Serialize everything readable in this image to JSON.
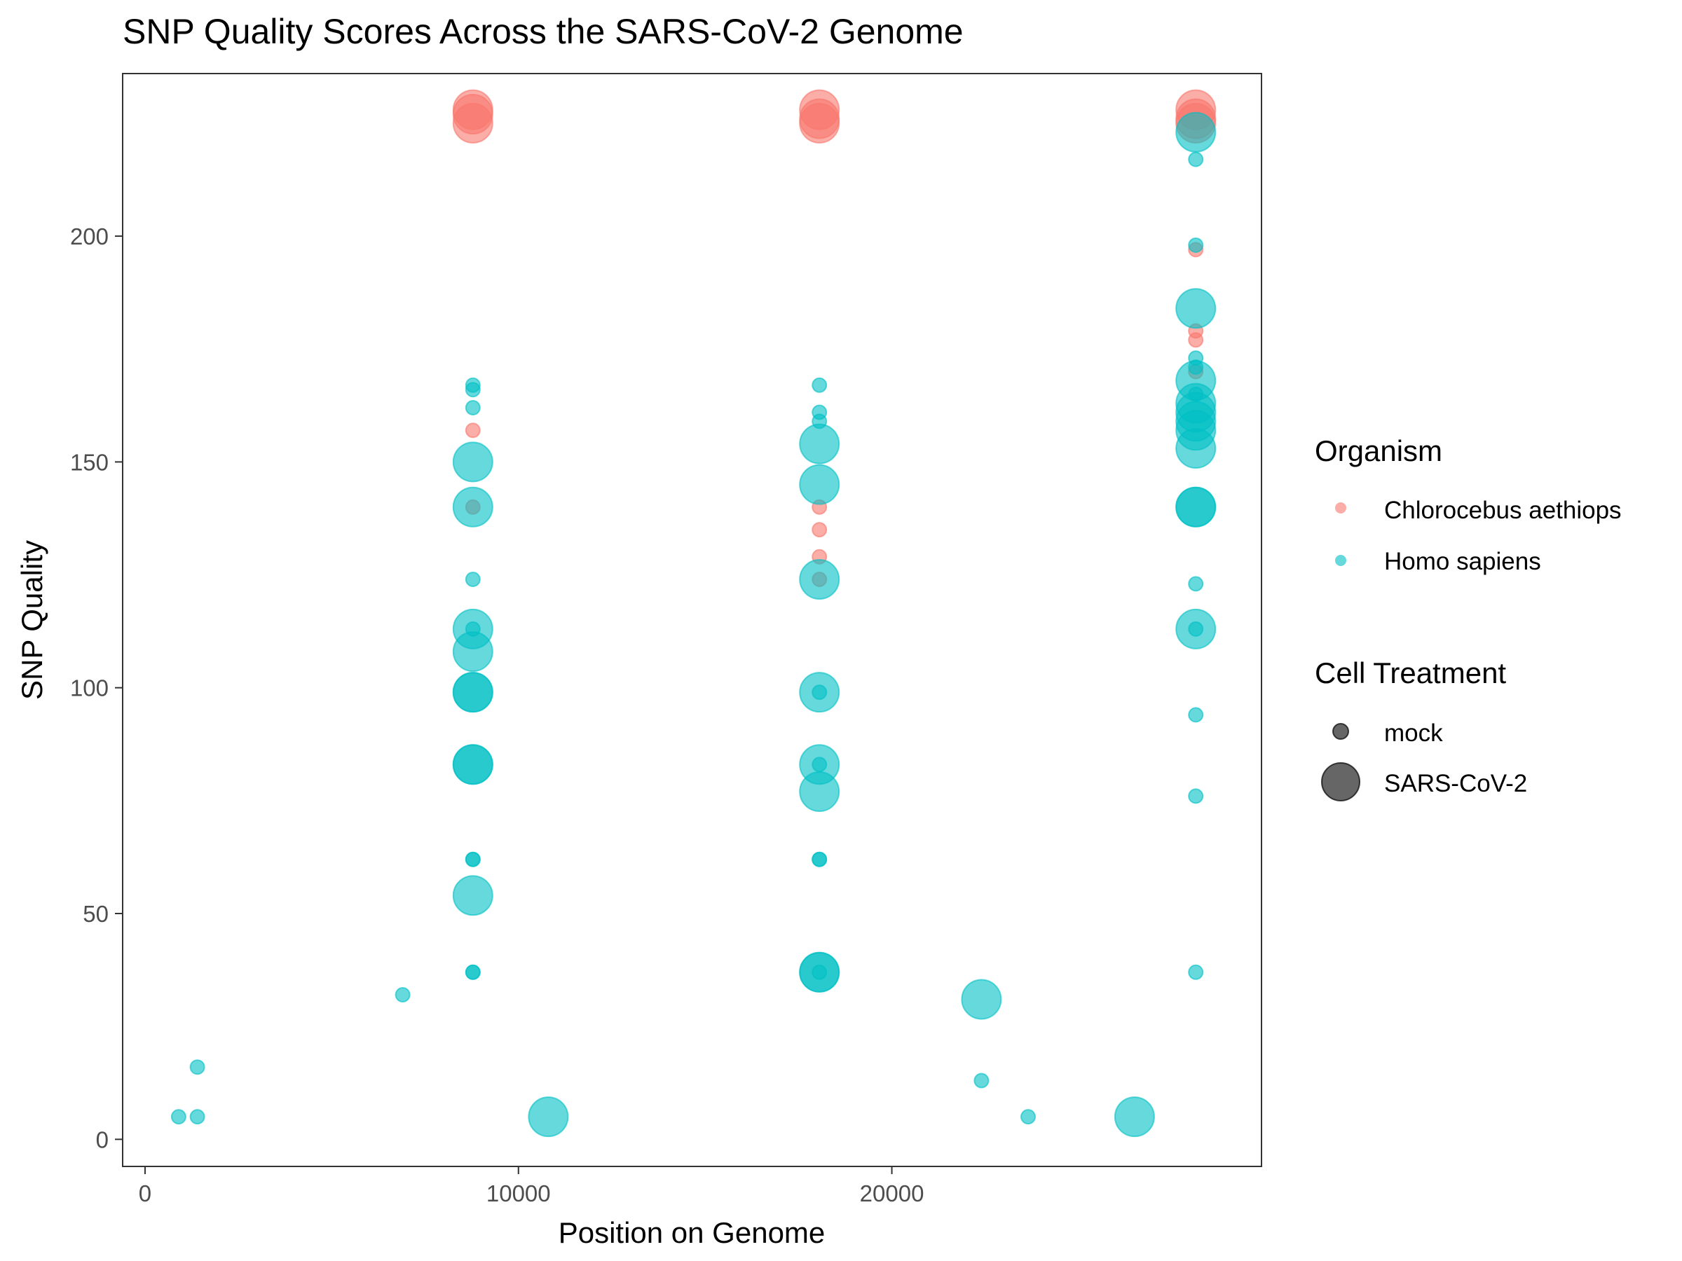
{
  "chart_data": {
    "type": "scatter",
    "title": "SNP Quality Scores Across the SARS-CoV-2 Genome",
    "xlabel": "Position on Genome",
    "ylabel": "SNP Quality",
    "xlim": [
      -600,
      29900
    ],
    "ylim": [
      -6,
      236
    ],
    "x_ticks": [
      0,
      10000,
      20000
    ],
    "y_ticks": [
      0,
      50,
      100,
      150,
      200
    ],
    "grid": false,
    "legend_placement": "right",
    "color_legend": {
      "title": "Organism",
      "entries": [
        {
          "label": "Chlorocebus aethiops",
          "color": "#F8766D"
        },
        {
          "label": "Homo sapiens",
          "color": "#00BFC4"
        }
      ]
    },
    "size_legend": {
      "title": "Cell Treatment",
      "entries": [
        {
          "label": "mock",
          "size": "small"
        },
        {
          "label": "SARS-CoV-2",
          "size": "large"
        }
      ]
    },
    "series": [
      {
        "name": "Chlorocebus aethiops",
        "color": "#F8766D",
        "points": [
          {
            "x": 8780,
            "y": 228,
            "treatment": "SARS-CoV-2"
          },
          {
            "x": 8780,
            "y": 227,
            "treatment": "SARS-CoV-2"
          },
          {
            "x": 8780,
            "y": 225,
            "treatment": "SARS-CoV-2"
          },
          {
            "x": 8780,
            "y": 157,
            "treatment": "mock"
          },
          {
            "x": 8780,
            "y": 140,
            "treatment": "mock"
          },
          {
            "x": 18060,
            "y": 228,
            "treatment": "SARS-CoV-2"
          },
          {
            "x": 18060,
            "y": 226,
            "treatment": "SARS-CoV-2"
          },
          {
            "x": 18060,
            "y": 225,
            "treatment": "SARS-CoV-2"
          },
          {
            "x": 18060,
            "y": 140,
            "treatment": "mock"
          },
          {
            "x": 18060,
            "y": 135,
            "treatment": "mock"
          },
          {
            "x": 18060,
            "y": 129,
            "treatment": "mock"
          },
          {
            "x": 18060,
            "y": 124,
            "treatment": "mock"
          },
          {
            "x": 28140,
            "y": 228,
            "treatment": "SARS-CoV-2"
          },
          {
            "x": 28140,
            "y": 226,
            "treatment": "SARS-CoV-2"
          },
          {
            "x": 28140,
            "y": 225,
            "treatment": "SARS-CoV-2"
          },
          {
            "x": 28140,
            "y": 197,
            "treatment": "mock"
          },
          {
            "x": 28140,
            "y": 179,
            "treatment": "mock"
          },
          {
            "x": 28140,
            "y": 177,
            "treatment": "mock"
          },
          {
            "x": 28140,
            "y": 170,
            "treatment": "mock"
          }
        ]
      },
      {
        "name": "Homo sapiens",
        "color": "#00BFC4",
        "points": [
          {
            "x": 8780,
            "y": 167,
            "treatment": "mock"
          },
          {
            "x": 8780,
            "y": 166,
            "treatment": "mock"
          },
          {
            "x": 8780,
            "y": 162,
            "treatment": "mock"
          },
          {
            "x": 8780,
            "y": 150,
            "treatment": "SARS-CoV-2"
          },
          {
            "x": 8780,
            "y": 140,
            "treatment": "SARS-CoV-2"
          },
          {
            "x": 8780,
            "y": 124,
            "treatment": "mock"
          },
          {
            "x": 8780,
            "y": 113,
            "treatment": "SARS-CoV-2"
          },
          {
            "x": 8780,
            "y": 113,
            "treatment": "mock"
          },
          {
            "x": 8780,
            "y": 108,
            "treatment": "SARS-CoV-2"
          },
          {
            "x": 8780,
            "y": 99,
            "treatment": "SARS-CoV-2"
          },
          {
            "x": 8780,
            "y": 99,
            "treatment": "SARS-CoV-2"
          },
          {
            "x": 8780,
            "y": 83,
            "treatment": "SARS-CoV-2"
          },
          {
            "x": 8780,
            "y": 83,
            "treatment": "SARS-CoV-2"
          },
          {
            "x": 8780,
            "y": 62,
            "treatment": "mock"
          },
          {
            "x": 8780,
            "y": 62,
            "treatment": "mock"
          },
          {
            "x": 8780,
            "y": 54,
            "treatment": "SARS-CoV-2"
          },
          {
            "x": 8780,
            "y": 37,
            "treatment": "mock"
          },
          {
            "x": 8780,
            "y": 37,
            "treatment": "mock"
          },
          {
            "x": 18060,
            "y": 167,
            "treatment": "mock"
          },
          {
            "x": 18060,
            "y": 161,
            "treatment": "mock"
          },
          {
            "x": 18060,
            "y": 159,
            "treatment": "mock"
          },
          {
            "x": 18060,
            "y": 154,
            "treatment": "SARS-CoV-2"
          },
          {
            "x": 18060,
            "y": 145,
            "treatment": "SARS-CoV-2"
          },
          {
            "x": 18060,
            "y": 124,
            "treatment": "SARS-CoV-2"
          },
          {
            "x": 18060,
            "y": 99,
            "treatment": "SARS-CoV-2"
          },
          {
            "x": 18060,
            "y": 99,
            "treatment": "mock"
          },
          {
            "x": 18060,
            "y": 83,
            "treatment": "SARS-CoV-2"
          },
          {
            "x": 18060,
            "y": 83,
            "treatment": "mock"
          },
          {
            "x": 18060,
            "y": 77,
            "treatment": "SARS-CoV-2"
          },
          {
            "x": 18060,
            "y": 62,
            "treatment": "mock"
          },
          {
            "x": 18060,
            "y": 62,
            "treatment": "mock"
          },
          {
            "x": 18060,
            "y": 37,
            "treatment": "SARS-CoV-2"
          },
          {
            "x": 18060,
            "y": 37,
            "treatment": "SARS-CoV-2"
          },
          {
            "x": 18060,
            "y": 37,
            "treatment": "mock"
          },
          {
            "x": 28140,
            "y": 223,
            "treatment": "SARS-CoV-2"
          },
          {
            "x": 28140,
            "y": 217,
            "treatment": "mock"
          },
          {
            "x": 28140,
            "y": 198,
            "treatment": "mock"
          },
          {
            "x": 28140,
            "y": 184,
            "treatment": "SARS-CoV-2"
          },
          {
            "x": 28140,
            "y": 173,
            "treatment": "mock"
          },
          {
            "x": 28140,
            "y": 171,
            "treatment": "mock"
          },
          {
            "x": 28140,
            "y": 168,
            "treatment": "SARS-CoV-2"
          },
          {
            "x": 28140,
            "y": 165,
            "treatment": "mock"
          },
          {
            "x": 28140,
            "y": 163,
            "treatment": "SARS-CoV-2"
          },
          {
            "x": 28140,
            "y": 161,
            "treatment": "SARS-CoV-2"
          },
          {
            "x": 28140,
            "y": 159,
            "treatment": "SARS-CoV-2"
          },
          {
            "x": 28140,
            "y": 157,
            "treatment": "SARS-CoV-2"
          },
          {
            "x": 28140,
            "y": 153,
            "treatment": "SARS-CoV-2"
          },
          {
            "x": 28140,
            "y": 140,
            "treatment": "SARS-CoV-2"
          },
          {
            "x": 28140,
            "y": 140,
            "treatment": "SARS-CoV-2"
          },
          {
            "x": 28140,
            "y": 123,
            "treatment": "mock"
          },
          {
            "x": 28140,
            "y": 113,
            "treatment": "SARS-CoV-2"
          },
          {
            "x": 28140,
            "y": 113,
            "treatment": "mock"
          },
          {
            "x": 28140,
            "y": 94,
            "treatment": "mock"
          },
          {
            "x": 28140,
            "y": 76,
            "treatment": "mock"
          },
          {
            "x": 28140,
            "y": 37,
            "treatment": "mock"
          },
          {
            "x": 900,
            "y": 5,
            "treatment": "mock"
          },
          {
            "x": 1400,
            "y": 5,
            "treatment": "mock"
          },
          {
            "x": 1400,
            "y": 16,
            "treatment": "mock"
          },
          {
            "x": 6900,
            "y": 32,
            "treatment": "mock"
          },
          {
            "x": 10800,
            "y": 5,
            "treatment": "SARS-CoV-2"
          },
          {
            "x": 22400,
            "y": 31,
            "treatment": "SARS-CoV-2"
          },
          {
            "x": 22400,
            "y": 13,
            "treatment": "mock"
          },
          {
            "x": 23650,
            "y": 5,
            "treatment": "mock"
          },
          {
            "x": 26500,
            "y": 5,
            "treatment": "SARS-CoV-2"
          }
        ]
      }
    ]
  }
}
